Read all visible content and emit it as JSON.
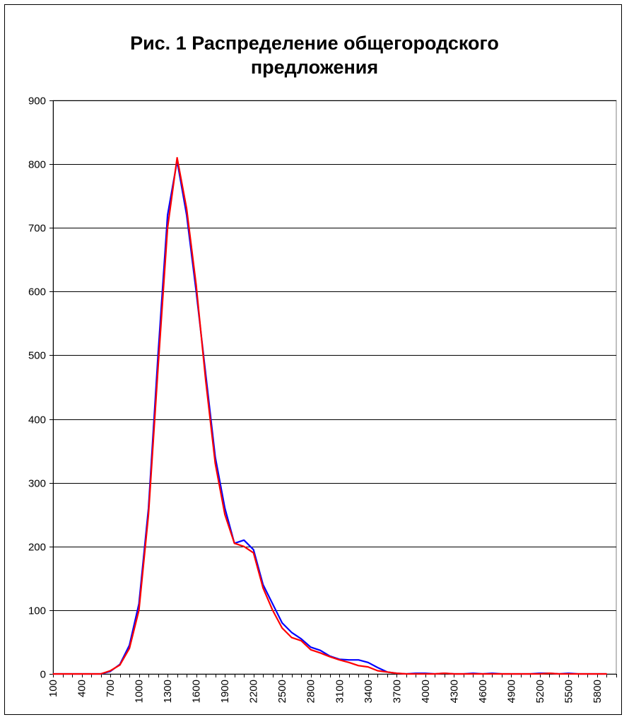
{
  "chart_data": {
    "type": "line",
    "title": "Рис. 1 Распределение общегородского предложения",
    "title_lines": [
      "Рис. 1 Распределение общегородского",
      "предложения"
    ],
    "xlabel": "",
    "ylabel": "",
    "ylim": [
      0,
      900
    ],
    "yticks": [
      "0",
      "100",
      "200",
      "300",
      "400",
      "500",
      "600",
      "700",
      "800",
      "900"
    ],
    "xlim": [
      100,
      6000
    ],
    "xticks": [
      "100",
      "400",
      "700",
      "1000",
      "1300",
      "1600",
      "1900",
      "2200",
      "2500",
      "2800",
      "3100",
      "3400",
      "3700",
      "4000",
      "4300",
      "4600",
      "4900",
      "5200",
      "5500",
      "5800"
    ],
    "grid": true,
    "legend": "none",
    "series": [
      {
        "color": "#0000ff",
        "points": [
          [
            100,
            0
          ],
          [
            200,
            0
          ],
          [
            300,
            0
          ],
          [
            400,
            0
          ],
          [
            500,
            0
          ],
          [
            600,
            0
          ],
          [
            700,
            4
          ],
          [
            800,
            15
          ],
          [
            900,
            45
          ],
          [
            1000,
            110
          ],
          [
            1100,
            260
          ],
          [
            1200,
            500
          ],
          [
            1300,
            720
          ],
          [
            1400,
            805
          ],
          [
            1500,
            720
          ],
          [
            1600,
            600
          ],
          [
            1700,
            470
          ],
          [
            1800,
            340
          ],
          [
            1900,
            260
          ],
          [
            2000,
            205
          ],
          [
            2100,
            210
          ],
          [
            2200,
            195
          ],
          [
            2300,
            140
          ],
          [
            2400,
            110
          ],
          [
            2500,
            80
          ],
          [
            2600,
            65
          ],
          [
            2700,
            55
          ],
          [
            2800,
            42
          ],
          [
            2900,
            37
          ],
          [
            3000,
            28
          ],
          [
            3100,
            23
          ],
          [
            3200,
            22
          ],
          [
            3300,
            22
          ],
          [
            3400,
            18
          ],
          [
            3500,
            10
          ],
          [
            3600,
            3
          ],
          [
            3700,
            1
          ],
          [
            3800,
            0
          ],
          [
            3900,
            1
          ],
          [
            4000,
            1
          ],
          [
            4100,
            0
          ],
          [
            4200,
            1
          ],
          [
            4300,
            0
          ],
          [
            4400,
            0
          ],
          [
            4500,
            1
          ],
          [
            4600,
            0
          ],
          [
            4700,
            1
          ],
          [
            4800,
            0
          ],
          [
            4900,
            0
          ],
          [
            5000,
            0
          ],
          [
            5100,
            0
          ],
          [
            5200,
            1
          ],
          [
            5300,
            1
          ],
          [
            5400,
            0
          ],
          [
            5500,
            1
          ],
          [
            5600,
            0
          ],
          [
            5700,
            0
          ],
          [
            5800,
            0
          ],
          [
            5900,
            0
          ]
        ]
      },
      {
        "color": "#ff0000",
        "points": [
          [
            100,
            0
          ],
          [
            200,
            0
          ],
          [
            300,
            0
          ],
          [
            400,
            0
          ],
          [
            500,
            0
          ],
          [
            600,
            0
          ],
          [
            700,
            5
          ],
          [
            800,
            14
          ],
          [
            900,
            40
          ],
          [
            1000,
            100
          ],
          [
            1100,
            250
          ],
          [
            1200,
            480
          ],
          [
            1300,
            700
          ],
          [
            1400,
            810
          ],
          [
            1500,
            730
          ],
          [
            1600,
            610
          ],
          [
            1700,
            460
          ],
          [
            1800,
            330
          ],
          [
            1900,
            250
          ],
          [
            2000,
            205
          ],
          [
            2100,
            200
          ],
          [
            2200,
            190
          ],
          [
            2300,
            135
          ],
          [
            2400,
            100
          ],
          [
            2500,
            72
          ],
          [
            2600,
            57
          ],
          [
            2700,
            52
          ],
          [
            2800,
            38
          ],
          [
            2900,
            33
          ],
          [
            3000,
            27
          ],
          [
            3100,
            22
          ],
          [
            3200,
            18
          ],
          [
            3300,
            13
          ],
          [
            3400,
            11
          ],
          [
            3500,
            5
          ],
          [
            3600,
            3
          ],
          [
            3700,
            1
          ],
          [
            3800,
            0
          ],
          [
            3900,
            0
          ],
          [
            4000,
            0
          ],
          [
            4100,
            0
          ],
          [
            4200,
            1
          ],
          [
            4300,
            0
          ],
          [
            4400,
            0
          ],
          [
            4500,
            0
          ],
          [
            4600,
            0
          ],
          [
            4700,
            0
          ],
          [
            4800,
            0
          ],
          [
            4900,
            0
          ],
          [
            5000,
            0
          ],
          [
            5100,
            0
          ],
          [
            5200,
            0
          ],
          [
            5300,
            1
          ],
          [
            5400,
            0
          ],
          [
            5500,
            0
          ],
          [
            5600,
            0
          ],
          [
            5700,
            0
          ],
          [
            5800,
            0
          ],
          [
            5900,
            0
          ]
        ]
      }
    ]
  }
}
